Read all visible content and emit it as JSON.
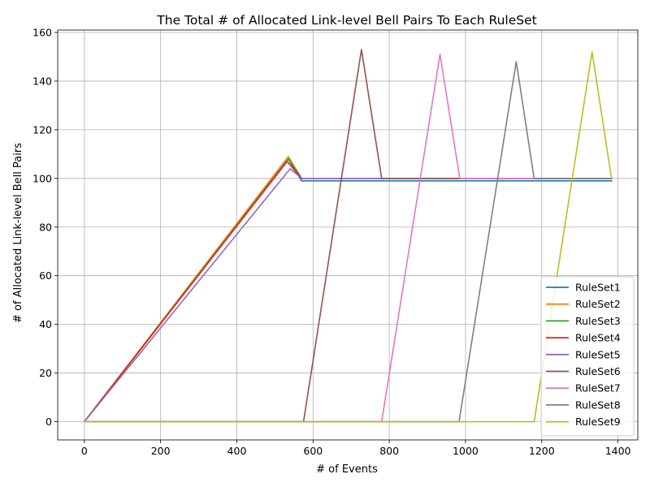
{
  "chart_data": {
    "type": "line",
    "title": "The Total # of Allocated Link-level Bell Pairs To Each RuleSet",
    "xlabel": "# of Events",
    "ylabel": "# of Allocated Link-level Bell Pairs",
    "xlim": [
      -70,
      1452
    ],
    "ylim": [
      -7.5,
      161
    ],
    "xticks": [
      0,
      200,
      400,
      600,
      800,
      1000,
      1200,
      1400
    ],
    "yticks": [
      0,
      20,
      40,
      60,
      80,
      100,
      120,
      140,
      160
    ],
    "xtick_labels": [
      "0",
      "200",
      "400",
      "600",
      "800",
      "1000",
      "1200",
      "1400"
    ],
    "ytick_labels": [
      "0",
      "20",
      "40",
      "60",
      "80",
      "100",
      "120",
      "140",
      "160"
    ],
    "grid": true,
    "legend_position": "bottom-right",
    "series": [
      {
        "name": "RuleSet1",
        "color": "#1f77b4",
        "x": [
          0,
          535,
          570,
          1385
        ],
        "y": [
          0,
          108,
          99,
          99
        ]
      },
      {
        "name": "RuleSet2",
        "color": "#ff7f0e",
        "x": [
          0,
          535,
          570,
          1385
        ],
        "y": [
          0,
          109,
          100,
          100
        ]
      },
      {
        "name": "RuleSet3",
        "color": "#2ca02c",
        "x": [
          0,
          535,
          570,
          1385
        ],
        "y": [
          0,
          108,
          100,
          100
        ]
      },
      {
        "name": "RuleSet4",
        "color": "#d62728",
        "x": [
          0,
          532,
          570,
          1385
        ],
        "y": [
          0,
          107,
          100,
          100
        ]
      },
      {
        "name": "RuleSet5",
        "color": "#9467bd",
        "x": [
          0,
          540,
          570,
          1385
        ],
        "y": [
          0,
          104,
          100,
          100
        ]
      },
      {
        "name": "RuleSet6",
        "color": "#8c564b",
        "x": [
          0,
          575,
          727,
          780,
          1385
        ],
        "y": [
          0,
          0,
          153,
          100,
          100
        ]
      },
      {
        "name": "RuleSet7",
        "color": "#e377c2",
        "x": [
          0,
          780,
          933,
          985,
          1385
        ],
        "y": [
          0,
          0,
          151,
          100,
          100
        ]
      },
      {
        "name": "RuleSet8",
        "color": "#7f7f7f",
        "x": [
          0,
          983,
          1133,
          1180,
          1385
        ],
        "y": [
          0,
          0,
          148,
          100,
          100
        ]
      },
      {
        "name": "RuleSet9",
        "color": "#bcbd22",
        "x": [
          0,
          1180,
          1332,
          1383
        ],
        "y": [
          0,
          0,
          152,
          100
        ]
      }
    ]
  }
}
